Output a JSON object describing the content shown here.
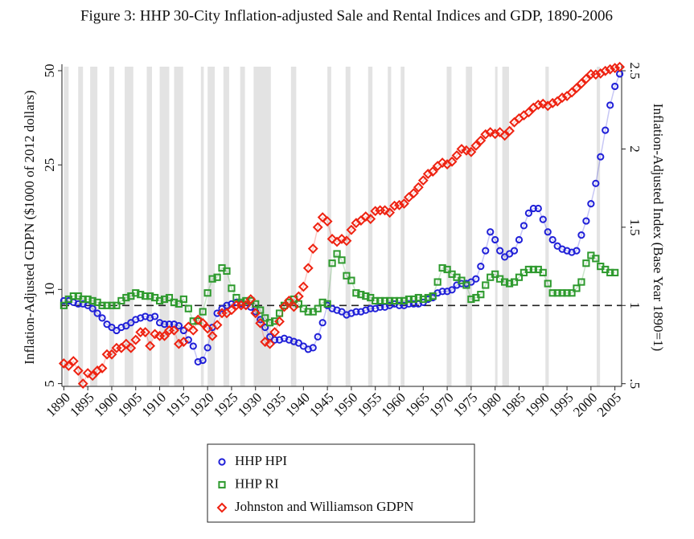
{
  "chart_data": {
    "type": "scatter",
    "title": "Figure 3: HHP 30-City Inflation-adjusted Sale and Rental Indices and GDP, 1890-2006",
    "y_label": "Inflation-Adjusted GDPN ($1000 of 2012 dollars)",
    "y2_label": "Inflation-Adjusted Index (Base Year 1890=1)",
    "x": [
      1890,
      1891,
      1892,
      1893,
      1894,
      1895,
      1896,
      1897,
      1898,
      1899,
      1900,
      1901,
      1902,
      1903,
      1904,
      1905,
      1906,
      1907,
      1908,
      1909,
      1910,
      1911,
      1912,
      1913,
      1914,
      1915,
      1916,
      1917,
      1918,
      1919,
      1920,
      1921,
      1922,
      1923,
      1924,
      1925,
      1926,
      1927,
      1928,
      1929,
      1930,
      1931,
      1932,
      1933,
      1934,
      1935,
      1936,
      1937,
      1938,
      1939,
      1940,
      1941,
      1942,
      1943,
      1944,
      1945,
      1946,
      1947,
      1948,
      1949,
      1950,
      1951,
      1952,
      1953,
      1954,
      1955,
      1956,
      1957,
      1958,
      1959,
      1960,
      1961,
      1962,
      1963,
      1964,
      1965,
      1966,
      1967,
      1968,
      1969,
      1970,
      1971,
      1972,
      1973,
      1974,
      1975,
      1976,
      1977,
      1978,
      1979,
      1980,
      1981,
      1982,
      1983,
      1984,
      1985,
      1986,
      1987,
      1988,
      1989,
      1990,
      1991,
      1992,
      1993,
      1994,
      1995,
      1996,
      1997,
      1998,
      1999,
      2000,
      2001,
      2002,
      2003,
      2004,
      2005,
      2006
    ],
    "series": [
      {
        "name": "HHP HPI",
        "color": "#2020d8",
        "marker": "circle",
        "axis": "y2",
        "values": [
          1.03,
          1.03,
          1.02,
          1.01,
          1.01,
          1.0,
          0.98,
          0.95,
          0.92,
          0.88,
          0.86,
          0.84,
          0.86,
          0.87,
          0.89,
          0.91,
          0.92,
          0.93,
          0.92,
          0.93,
          0.89,
          0.88,
          0.88,
          0.88,
          0.87,
          0.84,
          0.78,
          0.74,
          0.64,
          0.65,
          0.73,
          0.86,
          0.95,
          0.98,
          1.0,
          1.01,
          1.02,
          1.01,
          1.0,
          0.99,
          0.96,
          0.91,
          0.86,
          0.8,
          0.78,
          0.78,
          0.79,
          0.78,
          0.77,
          0.76,
          0.74,
          0.72,
          0.73,
          0.8,
          0.89,
          1.0,
          0.98,
          0.97,
          0.96,
          0.94,
          0.95,
          0.96,
          0.96,
          0.97,
          0.98,
          0.98,
          0.99,
          0.99,
          1.0,
          1.01,
          1.0,
          1.0,
          1.01,
          1.01,
          1.01,
          1.02,
          1.04,
          1.05,
          1.08,
          1.09,
          1.09,
          1.1,
          1.13,
          1.14,
          1.14,
          1.15,
          1.17,
          1.25,
          1.35,
          1.47,
          1.42,
          1.35,
          1.31,
          1.33,
          1.35,
          1.42,
          1.51,
          1.59,
          1.62,
          1.62,
          1.55,
          1.47,
          1.42,
          1.38,
          1.36,
          1.35,
          1.34,
          1.35,
          1.45,
          1.54,
          1.65,
          1.78,
          1.95,
          2.12,
          2.28,
          2.4,
          2.48
        ]
      },
      {
        "name": "HHP RI",
        "color": "#2e9a2e",
        "marker": "square",
        "axis": "y2",
        "values": [
          1.0,
          1.04,
          1.06,
          1.06,
          1.04,
          1.04,
          1.03,
          1.02,
          1.0,
          1.0,
          1.0,
          1.0,
          1.03,
          1.05,
          1.06,
          1.08,
          1.07,
          1.06,
          1.06,
          1.05,
          1.03,
          1.04,
          1.05,
          1.02,
          1.01,
          1.04,
          0.98,
          0.9,
          0.9,
          0.96,
          1.08,
          1.17,
          1.18,
          1.24,
          1.22,
          1.11,
          1.05,
          1.02,
          1.03,
          1.03,
          1.01,
          0.97,
          0.92,
          0.89,
          0.9,
          0.95,
          1.0,
          1.02,
          1.04,
          1.01,
          0.98,
          0.96,
          0.96,
          0.98,
          1.02,
          1.01,
          1.27,
          1.33,
          1.29,
          1.19,
          1.16,
          1.08,
          1.07,
          1.06,
          1.05,
          1.03,
          1.03,
          1.03,
          1.03,
          1.03,
          1.03,
          1.03,
          1.04,
          1.04,
          1.05,
          1.04,
          1.05,
          1.06,
          1.15,
          1.24,
          1.23,
          1.2,
          1.18,
          1.16,
          1.13,
          1.04,
          1.05,
          1.07,
          1.13,
          1.18,
          1.2,
          1.17,
          1.15,
          1.14,
          1.15,
          1.18,
          1.21,
          1.23,
          1.23,
          1.23,
          1.21,
          1.14,
          1.08,
          1.08,
          1.08,
          1.08,
          1.08,
          1.11,
          1.15,
          1.27,
          1.32,
          1.3,
          1.25,
          1.23,
          1.21,
          1.21,
          null
        ]
      },
      {
        "name": "Johnston and Williamson GDPN",
        "color": "#ee2211",
        "marker": "diamond",
        "axis": "y",
        "values": [
          5.8,
          5.7,
          5.9,
          5.5,
          5.0,
          5.4,
          5.3,
          5.5,
          5.6,
          6.2,
          6.2,
          6.5,
          6.5,
          6.7,
          6.5,
          6.9,
          7.3,
          7.3,
          6.6,
          7.2,
          7.1,
          7.1,
          7.4,
          7.4,
          6.7,
          6.8,
          7.6,
          7.4,
          8.0,
          7.8,
          7.5,
          7.1,
          7.7,
          8.4,
          8.4,
          8.6,
          8.9,
          8.9,
          8.9,
          9.3,
          8.4,
          7.8,
          6.8,
          6.7,
          7.3,
          7.9,
          8.8,
          9.2,
          8.8,
          9.5,
          10.2,
          11.7,
          13.5,
          15.8,
          17.0,
          16.5,
          14.5,
          14.2,
          14.5,
          14.3,
          15.5,
          16.3,
          16.6,
          17.1,
          16.8,
          17.8,
          17.9,
          17.9,
          17.6,
          18.5,
          18.6,
          18.8,
          19.7,
          20.3,
          21.2,
          22.3,
          23.4,
          23.8,
          24.8,
          25.4,
          25.1,
          25.6,
          26.8,
          28.1,
          27.8,
          27.5,
          28.8,
          29.9,
          31.3,
          31.8,
          31.4,
          31.8,
          31.0,
          32.1,
          34.2,
          35.2,
          36.0,
          36.8,
          38.1,
          38.9,
          39.2,
          38.6,
          39.4,
          39.9,
          41.0,
          41.5,
          42.6,
          44.0,
          45.5,
          47.1,
          48.7,
          48.6,
          49.0,
          49.9,
          50.5,
          51.0,
          51.4
        ]
      }
    ],
    "xlim": [
      1889.6,
      2006.4
    ],
    "xticks": [
      1890,
      1895,
      1900,
      1905,
      1910,
      1915,
      1920,
      1925,
      1930,
      1935,
      1940,
      1945,
      1950,
      1955,
      1960,
      1965,
      1970,
      1975,
      1980,
      1985,
      1990,
      1995,
      2000,
      2005
    ],
    "ylim": [
      4.9,
      51.5
    ],
    "y_log": true,
    "yticks": [
      5,
      10,
      25,
      50
    ],
    "y2lim": [
      0.483,
      2.526
    ],
    "y2ticks": [
      {
        "value": 0.5,
        "label": ".5"
      },
      1,
      1.5,
      2,
      2.5
    ],
    "y2_reference": 1,
    "shading_color": "#dedede",
    "shaded_periods": [
      [
        1890,
        1891
      ],
      [
        1893,
        1894
      ],
      [
        1895.5,
        1897
      ],
      [
        1899.5,
        1900.5
      ],
      [
        1902.7,
        1904.5
      ],
      [
        1907.3,
        1908.4
      ],
      [
        1910,
        1912
      ],
      [
        1913,
        1914.9
      ],
      [
        1918.6,
        1919.2
      ],
      [
        1920,
        1921.5
      ],
      [
        1923.3,
        1924.5
      ],
      [
        1926.8,
        1927.8
      ],
      [
        1929.6,
        1933.2
      ],
      [
        1937.4,
        1938.5
      ],
      [
        1945,
        1945.8
      ],
      [
        1948.8,
        1949.8
      ],
      [
        1953.5,
        1954.4
      ],
      [
        1957.6,
        1958.3
      ],
      [
        1960.3,
        1961.1
      ],
      [
        1969.9,
        1970.9
      ],
      [
        1973.9,
        1975.2
      ],
      [
        1980,
        1980.5
      ],
      [
        1981.5,
        1982.9
      ],
      [
        1990.5,
        1991.2
      ],
      [
        2001.2,
        2001.9
      ]
    ]
  }
}
